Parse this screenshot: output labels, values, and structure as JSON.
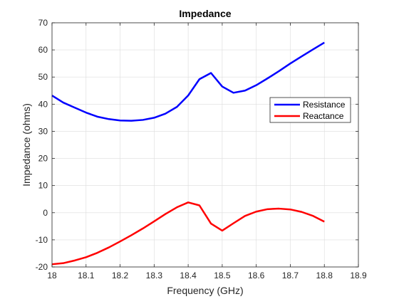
{
  "chart_data": {
    "type": "line",
    "title": "Impedance",
    "xlabel": "Frequency (GHz)",
    "ylabel": "Impedance (ohms)",
    "xlim": [
      18,
      18.9
    ],
    "ylim": [
      -20,
      70
    ],
    "xticks": [
      "18",
      "18.1",
      "18.2",
      "18.3",
      "18.4",
      "18.5",
      "18.6",
      "18.7",
      "18.8",
      "18.9"
    ],
    "yticks": [
      "-20",
      "-10",
      "0",
      "10",
      "20",
      "30",
      "40",
      "50",
      "60",
      "70"
    ],
    "grid": true,
    "legend_location": "right",
    "x": [
      18.0,
      18.033,
      18.067,
      18.1,
      18.133,
      18.167,
      18.2,
      18.233,
      18.267,
      18.3,
      18.333,
      18.367,
      18.4,
      18.433,
      18.467,
      18.5,
      18.533,
      18.567,
      18.6,
      18.633,
      18.667,
      18.7,
      18.733,
      18.767,
      18.8
    ],
    "series": [
      {
        "name": "Resistance",
        "color": "#0000ff",
        "values": [
          43.2,
          40.6,
          38.7,
          36.9,
          35.4,
          34.5,
          34.0,
          33.9,
          34.2,
          35.0,
          36.5,
          39.0,
          43.2,
          49.2,
          51.5,
          46.5,
          44.2,
          45.0,
          47.0,
          49.5,
          52.2,
          55.0,
          57.6,
          60.2,
          62.7
        ]
      },
      {
        "name": "Reactance",
        "color": "#ff0000",
        "values": [
          -19.0,
          -18.6,
          -17.6,
          -16.4,
          -14.8,
          -12.8,
          -10.6,
          -8.3,
          -5.8,
          -3.2,
          -0.5,
          2.0,
          3.8,
          2.7,
          -4.0,
          -6.6,
          -3.9,
          -1.2,
          0.4,
          1.3,
          1.5,
          1.2,
          0.3,
          -1.2,
          -3.3
        ]
      }
    ]
  }
}
